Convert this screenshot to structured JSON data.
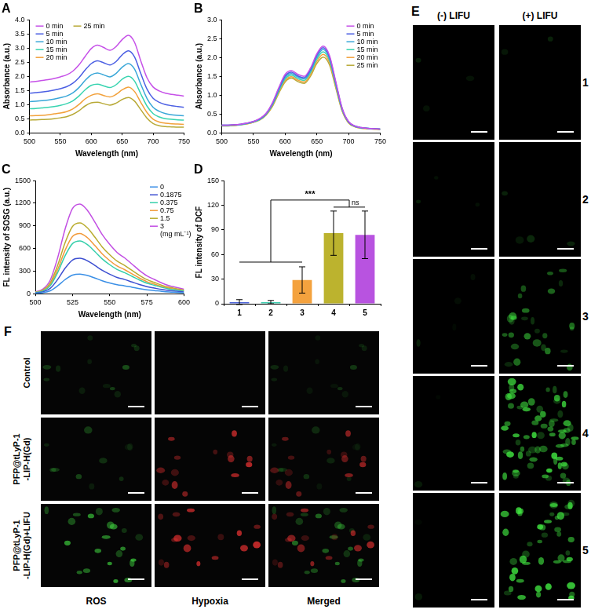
{
  "chart_data": [
    {
      "title": "A",
      "type": "line",
      "x_label": "Wavelength (nm)",
      "y_label": "Absorbance (a.u.)",
      "x": [
        500,
        510,
        520,
        530,
        540,
        550,
        560,
        570,
        580,
        590,
        600,
        610,
        620,
        630,
        640,
        650,
        660,
        670,
        680,
        690,
        700,
        710,
        720,
        730,
        740,
        750
      ],
      "xlim": [
        500,
        750
      ],
      "xticks": [
        500,
        550,
        600,
        650,
        700,
        750
      ],
      "ylim": [
        0,
        4
      ],
      "yticks": [
        {
          "value": 0,
          "label": "0.0"
        },
        {
          "value": 0.5,
          "label": "0.5"
        },
        {
          "value": 1,
          "label": "1.0"
        },
        {
          "value": 1.5,
          "label": "1.5"
        },
        {
          "value": 2,
          "label": "2.0"
        },
        {
          "value": 2.5,
          "label": "2.5"
        },
        {
          "value": 3,
          "label": "3.0"
        },
        {
          "value": 3.5,
          "label": "3.5"
        },
        {
          "value": 4,
          "label": "4.0"
        }
      ],
      "grid": false,
      "legend": "upper left",
      "series": [
        {
          "name": "0 min",
          "color": "#c651e8",
          "values": [
            1.8,
            1.82,
            1.85,
            1.88,
            1.92,
            1.98,
            2.05,
            2.18,
            2.4,
            2.7,
            2.98,
            3.1,
            3.02,
            2.92,
            3.05,
            3.3,
            3.45,
            3.2,
            2.55,
            1.95,
            1.62,
            1.48,
            1.4,
            1.36,
            1.33,
            1.3
          ]
        },
        {
          "name": "5 min",
          "color": "#4b5fe3",
          "values": [
            1.4,
            1.42,
            1.44,
            1.47,
            1.51,
            1.56,
            1.63,
            1.75,
            1.95,
            2.22,
            2.45,
            2.55,
            2.48,
            2.4,
            2.52,
            2.76,
            2.9,
            2.68,
            2.1,
            1.55,
            1.22,
            1.08,
            1.0,
            0.96,
            0.93,
            0.9
          ]
        },
        {
          "name": "10 min",
          "color": "#3aa7d8",
          "values": [
            1.1,
            1.12,
            1.14,
            1.16,
            1.19,
            1.24,
            1.3,
            1.41,
            1.6,
            1.85,
            2.05,
            2.12,
            2.05,
            1.98,
            2.1,
            2.32,
            2.45,
            2.25,
            1.72,
            1.22,
            0.9,
            0.76,
            0.68,
            0.64,
            0.62,
            0.6
          ]
        },
        {
          "name": "15 min",
          "color": "#38d4b0",
          "values": [
            0.85,
            0.86,
            0.88,
            0.9,
            0.93,
            0.97,
            1.03,
            1.13,
            1.3,
            1.52,
            1.68,
            1.72,
            1.66,
            1.6,
            1.7,
            1.9,
            2.0,
            1.83,
            1.38,
            0.95,
            0.68,
            0.56,
            0.5,
            0.48,
            0.46,
            0.45
          ]
        },
        {
          "name": "20 min",
          "color": "#f2a13b",
          "values": [
            0.6,
            0.61,
            0.62,
            0.64,
            0.67,
            0.7,
            0.75,
            0.84,
            1.0,
            1.2,
            1.33,
            1.38,
            1.32,
            1.27,
            1.36,
            1.52,
            1.62,
            1.46,
            1.08,
            0.72,
            0.48,
            0.38,
            0.34,
            0.32,
            0.31,
            0.3
          ]
        },
        {
          "name": "25 min",
          "color": "#b8a936",
          "values": [
            0.45,
            0.46,
            0.47,
            0.48,
            0.5,
            0.53,
            0.57,
            0.65,
            0.78,
            0.95,
            1.06,
            1.08,
            1.03,
            0.98,
            1.05,
            1.18,
            1.25,
            1.12,
            0.82,
            0.52,
            0.33,
            0.25,
            0.22,
            0.21,
            0.2,
            0.2
          ]
        }
      ]
    },
    {
      "title": "B",
      "type": "line",
      "x_label": "Wavelength (nm)",
      "y_label": "Absorbance (a.u.)",
      "x": [
        500,
        510,
        520,
        530,
        540,
        550,
        560,
        570,
        580,
        590,
        600,
        610,
        620,
        630,
        640,
        650,
        660,
        670,
        680,
        690,
        700,
        710,
        720,
        730,
        740,
        750
      ],
      "xlim": [
        500,
        750
      ],
      "xticks": [
        500,
        550,
        600,
        650,
        700,
        750
      ],
      "ylim": [
        0,
        3
      ],
      "yticks": [
        {
          "value": 0,
          "label": "0.0"
        },
        {
          "value": 0.5,
          "label": "0.5"
        },
        {
          "value": 1,
          "label": "1.0"
        },
        {
          "value": 1.5,
          "label": "1.5"
        },
        {
          "value": 2,
          "label": "2.0"
        },
        {
          "value": 2.5,
          "label": "2.5"
        },
        {
          "value": 3,
          "label": "3.0"
        }
      ],
      "grid": false,
      "legend": "upper right",
      "series": [
        {
          "name": "0 min",
          "color": "#c651e8",
          "values": [
            0.2,
            0.2,
            0.21,
            0.23,
            0.26,
            0.3,
            0.38,
            0.52,
            0.8,
            1.2,
            1.55,
            1.65,
            1.55,
            1.5,
            1.72,
            2.1,
            2.3,
            2.05,
            1.35,
            0.65,
            0.3,
            0.18,
            0.14,
            0.12,
            0.11,
            0.1
          ]
        },
        {
          "name": "5 min",
          "color": "#4b5fe3",
          "values": [
            0.2,
            0.2,
            0.21,
            0.23,
            0.26,
            0.3,
            0.37,
            0.51,
            0.78,
            1.17,
            1.51,
            1.61,
            1.51,
            1.46,
            1.68,
            2.06,
            2.26,
            2.01,
            1.32,
            0.64,
            0.29,
            0.18,
            0.14,
            0.12,
            0.11,
            0.1
          ]
        },
        {
          "name": "10 min",
          "color": "#3aa7d8",
          "values": [
            0.2,
            0.2,
            0.21,
            0.22,
            0.25,
            0.29,
            0.36,
            0.5,
            0.76,
            1.14,
            1.47,
            1.57,
            1.48,
            1.43,
            1.64,
            2.01,
            2.21,
            1.97,
            1.29,
            0.62,
            0.29,
            0.17,
            0.13,
            0.12,
            0.11,
            0.1
          ]
        },
        {
          "name": "15 min",
          "color": "#38d4b0",
          "values": [
            0.19,
            0.19,
            0.2,
            0.22,
            0.25,
            0.29,
            0.35,
            0.49,
            0.74,
            1.11,
            1.43,
            1.53,
            1.44,
            1.39,
            1.6,
            1.96,
            2.15,
            1.92,
            1.26,
            0.61,
            0.28,
            0.17,
            0.13,
            0.12,
            0.11,
            0.1
          ]
        },
        {
          "name": "20 min",
          "color": "#f2a13b",
          "values": [
            0.19,
            0.19,
            0.2,
            0.22,
            0.24,
            0.28,
            0.35,
            0.48,
            0.72,
            1.08,
            1.39,
            1.49,
            1.4,
            1.35,
            1.55,
            1.9,
            2.08,
            1.86,
            1.22,
            0.59,
            0.27,
            0.16,
            0.13,
            0.11,
            0.1,
            0.1
          ]
        },
        {
          "name": "25 min",
          "color": "#b8a936",
          "values": [
            0.18,
            0.18,
            0.19,
            0.21,
            0.24,
            0.28,
            0.34,
            0.47,
            0.7,
            1.05,
            1.35,
            1.45,
            1.36,
            1.31,
            1.5,
            1.84,
            2.01,
            1.8,
            1.18,
            0.57,
            0.26,
            0.16,
            0.12,
            0.11,
            0.1,
            0.09
          ]
        }
      ]
    },
    {
      "title": "C",
      "type": "line",
      "x_label": "Wavelength (nm)",
      "y_label": "FL intensity of SOSG (a.u.)",
      "x": [
        500,
        505,
        510,
        515,
        520,
        525,
        530,
        535,
        540,
        545,
        550,
        555,
        560,
        565,
        570,
        575,
        580,
        585,
        590,
        595,
        600
      ],
      "xlim": [
        500,
        600
      ],
      "xticks": [
        500,
        525,
        550,
        575,
        600
      ],
      "ylim": [
        0,
        1500
      ],
      "yticks": [
        0,
        300,
        600,
        900,
        1200,
        1500
      ],
      "grid": false,
      "legend": "upper right",
      "annotations": [
        "(mg mL⁻¹)"
      ],
      "series": [
        {
          "name": "0",
          "color": "#3a8fe6",
          "values": [
            5,
            13,
            39,
            104,
            187,
            247,
            260,
            242,
            208,
            172,
            143,
            120,
            104,
            86,
            68,
            52,
            42,
            31,
            23,
            18,
            13
          ]
        },
        {
          "name": "0.1875",
          "color": "#3d4fd1",
          "values": [
            9,
            24,
            71,
            188,
            338,
            447,
            470,
            437,
            376,
            310,
            259,
            216,
            188,
            155,
            122,
            94,
            75,
            56,
            42,
            33,
            24
          ]
        },
        {
          "name": "0.375",
          "color": "#35cfaa",
          "values": [
            14,
            35,
            105,
            280,
            504,
            665,
            700,
            651,
            560,
            462,
            385,
            322,
            280,
            231,
            182,
            140,
            112,
            84,
            63,
            49,
            35
          ]
        },
        {
          "name": "0.75",
          "color": "#f29a3a",
          "values": [
            16,
            40,
            120,
            320,
            576,
            760,
            800,
            744,
            640,
            528,
            440,
            368,
            320,
            264,
            208,
            160,
            128,
            96,
            72,
            56,
            40
          ]
        },
        {
          "name": "1.5",
          "color": "#b9ac2e",
          "values": [
            19,
            47,
            141,
            376,
            677,
            893,
            940,
            874,
            752,
            620,
            517,
            432,
            376,
            310,
            244,
            188,
            150,
            113,
            85,
            66,
            47
          ]
        },
        {
          "name": "3",
          "color": "#c24fe3",
          "values": [
            24,
            60,
            179,
            476,
            857,
            1131,
            1190,
            1107,
            952,
            785,
            655,
            547,
            476,
            393,
            309,
            238,
            190,
            143,
            107,
            83,
            60
          ]
        }
      ]
    },
    {
      "title": "D",
      "type": "bar",
      "y_label": "FL intensity of DCF",
      "categories": [
        "1",
        "2",
        "3",
        "4",
        "5"
      ],
      "values": [
        2,
        2,
        29,
        86,
        84
      ],
      "errors": [
        3,
        2,
        16,
        27,
        29
      ],
      "colors": [
        "#4a63d8",
        "#3ccdb0",
        "#f4a23e",
        "#bcb32e",
        "#b853e0"
      ],
      "ylim": [
        0,
        150
      ],
      "yticks": [
        0,
        30,
        60,
        90,
        120,
        150
      ],
      "grid": false,
      "annotations": [
        "***",
        "ns"
      ]
    }
  ],
  "panel_E": {
    "title": "E",
    "columns": [
      "(-) LIFU",
      "(+) LIFU"
    ],
    "rows": [
      "1",
      "2",
      "3",
      "4",
      "5"
    ]
  },
  "panel_F": {
    "title": "F",
    "rows": [
      [
        "Control"
      ],
      [
        "PFP@tLyP-1",
        "-LIP-H(Gd)"
      ],
      [
        "PFP@tLyP-1",
        "-LIP-H(Gd)+LIFU"
      ]
    ],
    "columns": [
      "ROS",
      "Hypoxia",
      "Merged"
    ]
  }
}
